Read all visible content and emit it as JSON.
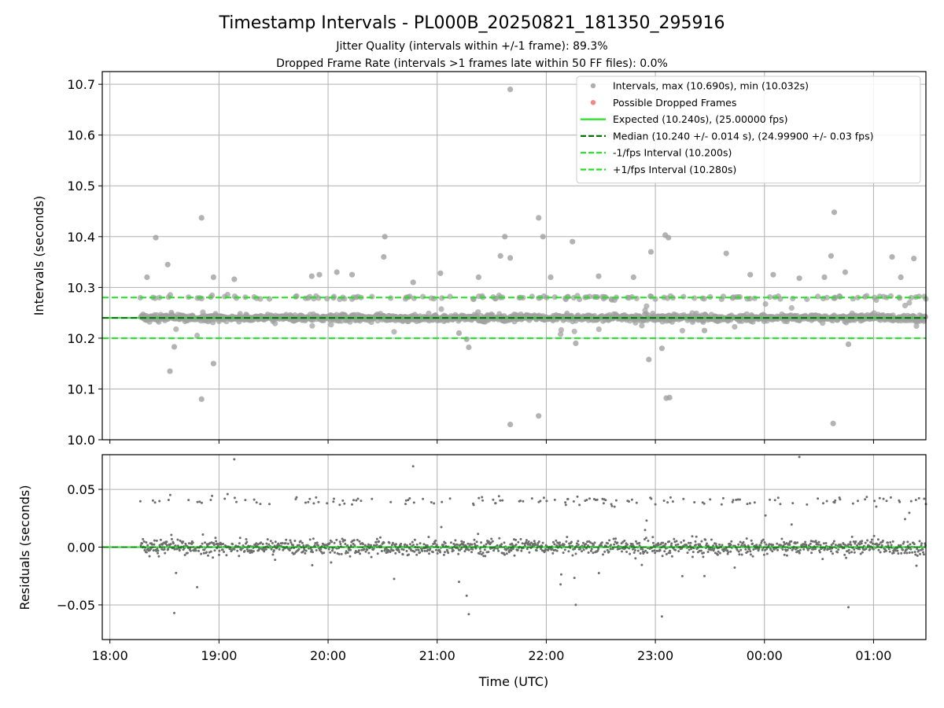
{
  "chart_data": {
    "type": "scatter",
    "title": "Timestamp Intervals - PL000B_20250821_181350_295916",
    "subtitle_1": "Jitter Quality (intervals within +/-1 frame): 89.3%",
    "subtitle_2": "Dropped Frame Rate (intervals >1 frames late within 50 FF files): 0.0%",
    "xlabel": "Time (UTC)",
    "x_ticks": [
      "18:00",
      "19:00",
      "20:00",
      "21:00",
      "22:00",
      "23:00",
      "00:00",
      "01:00"
    ],
    "x_range_hours": [
      17.93,
      25.48
    ],
    "data_range_hours": [
      18.28,
      25.48
    ],
    "top_panel": {
      "ylabel": "Intervals (seconds)",
      "ylim": [
        10.0,
        10.725
      ],
      "y_ticks": [
        "10.0",
        "10.1",
        "10.2",
        "10.3",
        "10.4",
        "10.5",
        "10.6",
        "10.7"
      ],
      "y_tick_values": [
        10.0,
        10.1,
        10.2,
        10.3,
        10.4,
        10.5,
        10.6,
        10.7
      ],
      "grid": true,
      "reference_lines": {
        "expected": 10.24,
        "median": 10.24,
        "minus_1fps": 10.2,
        "plus_1fps": 10.28
      },
      "outliers": [
        {
          "t": 18.34,
          "y": 10.32
        },
        {
          "t": 18.42,
          "y": 10.398
        },
        {
          "t": 18.53,
          "y": 10.345
        },
        {
          "t": 18.55,
          "y": 10.135
        },
        {
          "t": 18.59,
          "y": 10.183
        },
        {
          "t": 18.84,
          "y": 10.437
        },
        {
          "t": 18.84,
          "y": 10.08
        },
        {
          "t": 18.95,
          "y": 10.15
        },
        {
          "t": 18.95,
          "y": 10.32
        },
        {
          "t": 19.14,
          "y": 10.316
        },
        {
          "t": 19.85,
          "y": 10.322
        },
        {
          "t": 19.92,
          "y": 10.325
        },
        {
          "t": 20.08,
          "y": 10.33
        },
        {
          "t": 20.22,
          "y": 10.325
        },
        {
          "t": 20.52,
          "y": 10.4
        },
        {
          "t": 20.51,
          "y": 10.36
        },
        {
          "t": 20.78,
          "y": 10.31
        },
        {
          "t": 21.03,
          "y": 10.328
        },
        {
          "t": 21.2,
          "y": 10.21
        },
        {
          "t": 21.27,
          "y": 10.198
        },
        {
          "t": 21.29,
          "y": 10.182
        },
        {
          "t": 21.38,
          "y": 10.32
        },
        {
          "t": 21.58,
          "y": 10.362
        },
        {
          "t": 21.62,
          "y": 10.4
        },
        {
          "t": 21.67,
          "y": 10.358
        },
        {
          "t": 21.67,
          "y": 10.69
        },
        {
          "t": 21.67,
          "y": 10.03
        },
        {
          "t": 21.93,
          "y": 10.437
        },
        {
          "t": 21.93,
          "y": 10.047
        },
        {
          "t": 21.97,
          "y": 10.4
        },
        {
          "t": 22.04,
          "y": 10.32
        },
        {
          "t": 22.24,
          "y": 10.39
        },
        {
          "t": 22.27,
          "y": 10.19
        },
        {
          "t": 22.48,
          "y": 10.322
        },
        {
          "t": 22.8,
          "y": 10.32
        },
        {
          "t": 22.94,
          "y": 10.158
        },
        {
          "t": 22.96,
          "y": 10.37
        },
        {
          "t": 23.06,
          "y": 10.18
        },
        {
          "t": 23.09,
          "y": 10.403
        },
        {
          "t": 23.12,
          "y": 10.398
        },
        {
          "t": 23.1,
          "y": 10.082
        },
        {
          "t": 23.13,
          "y": 10.083
        },
        {
          "t": 23.45,
          "y": 10.215
        },
        {
          "t": 23.65,
          "y": 10.367
        },
        {
          "t": 23.87,
          "y": 10.325
        },
        {
          "t": 24.08,
          "y": 10.325
        },
        {
          "t": 24.32,
          "y": 10.318
        },
        {
          "t": 24.55,
          "y": 10.32
        },
        {
          "t": 24.61,
          "y": 10.362
        },
        {
          "t": 24.64,
          "y": 10.448
        },
        {
          "t": 24.63,
          "y": 10.032
        },
        {
          "t": 24.74,
          "y": 10.33
        },
        {
          "t": 24.77,
          "y": 10.188
        },
        {
          "t": 25.17,
          "y": 10.36
        },
        {
          "t": 25.37,
          "y": 10.357
        },
        {
          "t": 25.25,
          "y": 10.32
        }
      ]
    },
    "bottom_panel": {
      "ylabel": "Residuals (seconds)",
      "ylim": [
        -0.08,
        0.08
      ],
      "y_ticks": [
        "−0.05",
        "0.00",
        "0.05"
      ],
      "y_tick_values": [
        -0.05,
        0.0,
        0.05
      ],
      "grid": true,
      "zero_line": 0.0
    },
    "legend": {
      "placement": "upper-right",
      "entries": [
        {
          "label": "Intervals, max (10.690s), min (10.032s)",
          "marker": "dot",
          "color": "#a0a0a0"
        },
        {
          "label": "Possible Dropped Frames",
          "marker": "dot",
          "color": "#f07070"
        },
        {
          "label": "Expected (10.240s), (25.00000 fps)",
          "marker": "solid",
          "color": "#22e022"
        },
        {
          "label": "Median (10.240 +/- 0.014 s), (24.99900 +/- 0.03 fps)",
          "marker": "dashed",
          "color": "#0a6e0a"
        },
        {
          "label": "-1/fps Interval (10.200s)",
          "marker": "dashed",
          "color": "#22e022"
        },
        {
          "label": "+1/fps Interval (10.280s)",
          "marker": "dashed",
          "color": "#22e022"
        }
      ]
    },
    "colors": {
      "points_top": "#a0a0a0",
      "points_bottom": "#6e6e6e",
      "expected": "#22e022",
      "median": "#0a6e0a",
      "bounds": "#22e022",
      "grid": "#b0b0b0"
    }
  }
}
